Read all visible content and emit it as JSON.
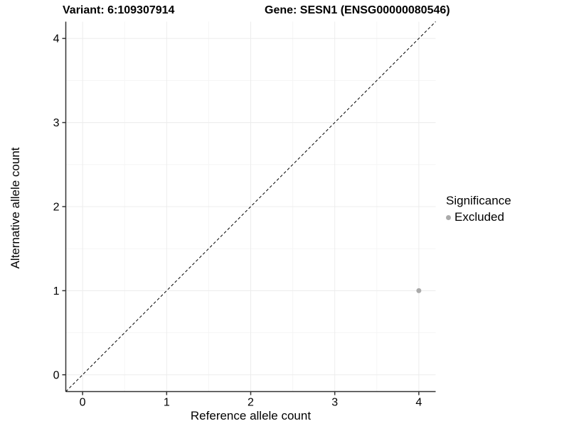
{
  "titles": {
    "variant": "Variant: 6:109307914",
    "gene": "Gene: SESN1 (ENSG00000080546)"
  },
  "axes": {
    "x_label": "Reference allele count",
    "y_label": "Alternative allele count"
  },
  "legend": {
    "title": "Significance",
    "items": [
      {
        "label": "Excluded",
        "color": "#aaaaaa"
      }
    ]
  },
  "colors": {
    "grid_major": "#ececec",
    "grid_minor": "#f5f5f5",
    "axis_line": "#333333",
    "tick": "#333333",
    "text": "#000000",
    "reference_line": "#000000"
  },
  "chart_data": {
    "type": "scatter",
    "title": "Variant: 6:109307914 | Gene: SESN1 (ENSG00000080546)",
    "xlabel": "Reference allele count",
    "ylabel": "Alternative allele count",
    "xlim": [
      -0.2,
      4.2
    ],
    "ylim": [
      -0.2,
      4.2
    ],
    "x_ticks": [
      0,
      1,
      2,
      3,
      4
    ],
    "y_ticks": [
      0,
      1,
      2,
      3,
      4
    ],
    "grid": "major+minor",
    "legend_position": "right",
    "legend_title": "Significance",
    "series": [
      {
        "name": "Excluded",
        "color": "#aaaaaa",
        "points": [
          {
            "x": 4,
            "y": 1
          }
        ]
      }
    ],
    "reference_line": {
      "type": "abline",
      "slope": 1,
      "intercept": 0,
      "style": "dashed",
      "color": "#000000"
    }
  }
}
